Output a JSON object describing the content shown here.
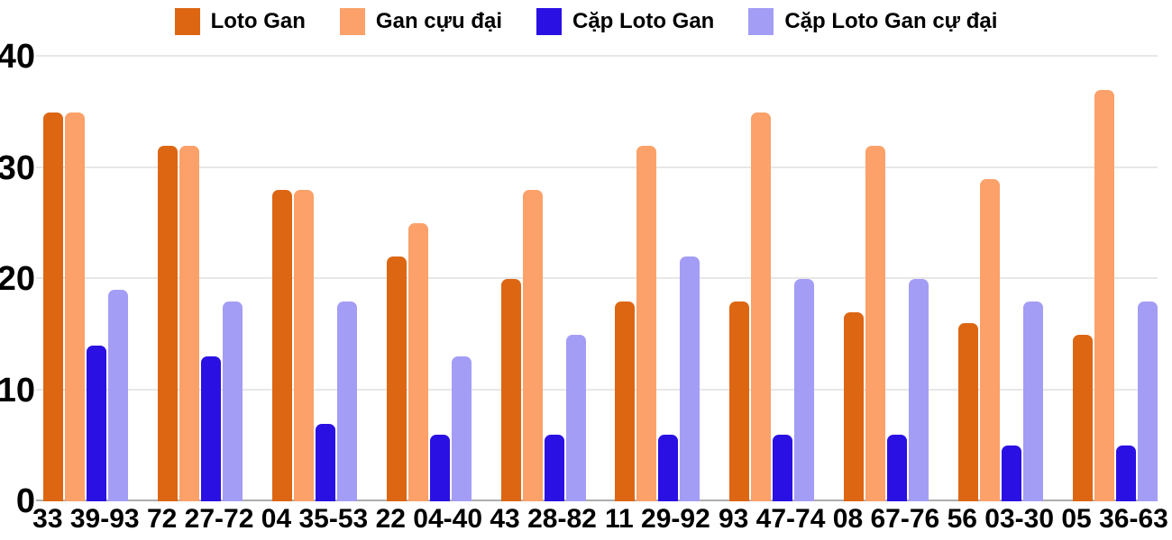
{
  "chart_data": {
    "type": "bar",
    "title": "",
    "xlabel": "",
    "ylabel": "",
    "ylim": [
      0,
      40
    ],
    "yticks": [
      0,
      10,
      20,
      30,
      40
    ],
    "grid": true,
    "legend_position": "top",
    "categories": [
      "33 39-93",
      "72 27-72",
      "04 35-53",
      "22 04-40",
      "43 28-82",
      "11 29-92",
      "93 47-74",
      "08 67-76",
      "56 03-30",
      "05 36-63"
    ],
    "series": [
      {
        "name": "Loto Gan",
        "slug": "loto-gan",
        "color": "#dd6613",
        "values": [
          35,
          32,
          28,
          22,
          20,
          18,
          18,
          17,
          16,
          15
        ]
      },
      {
        "name": "Gan cựu đại",
        "slug": "gan-cuu-dai",
        "color": "#fba169",
        "values": [
          35,
          32,
          28,
          25,
          28,
          32,
          35,
          32,
          29,
          37
        ]
      },
      {
        "name": "Cặp Loto Gan",
        "slug": "cap-loto-gan",
        "color": "#2a10e3",
        "values": [
          14,
          13,
          7,
          6,
          6,
          6,
          6,
          6,
          5,
          5
        ]
      },
      {
        "name": "Cặp Loto Gan cự đại",
        "slug": "cap-loto-gan-cu-dai",
        "color": "#a49df5",
        "values": [
          19,
          18,
          18,
          13,
          15,
          22,
          20,
          20,
          18,
          18
        ]
      }
    ]
  },
  "colors": {
    "gridline": "#e7e7e7",
    "axis_line": "#adadad",
    "text": "#000000",
    "background": "#ffffff"
  }
}
